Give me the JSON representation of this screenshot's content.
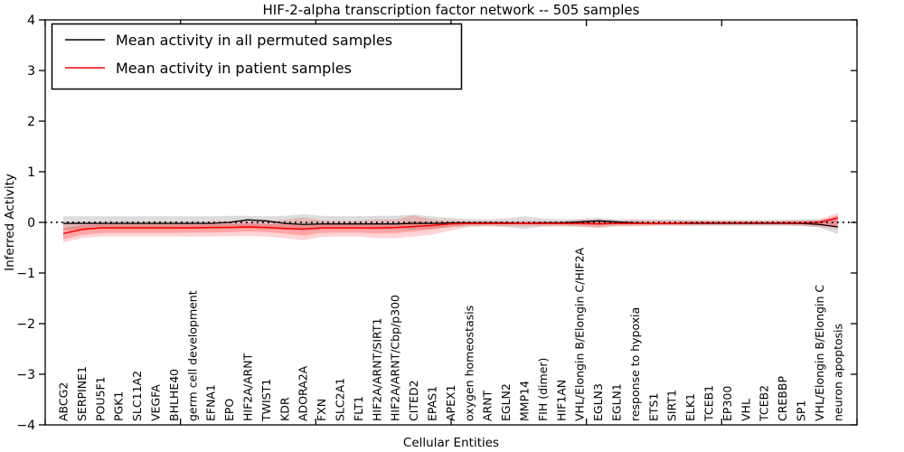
{
  "chart_data": {
    "type": "line",
    "title": "HIF-2-alpha transcription factor network -- 505 samples",
    "xlabel": "Cellular Entities",
    "ylabel": "Inferred Activity",
    "ylim": [
      -4,
      4
    ],
    "yticks": [
      4,
      3,
      2,
      1,
      0,
      -1,
      -2,
      -3,
      -4
    ],
    "ytick_labels": [
      "4",
      "3",
      "2",
      "1",
      "0",
      "−1",
      "−2",
      "−3",
      "−4"
    ],
    "grid": false,
    "legend_position": "upper left",
    "background_color": "#ffffff",
    "frame_color": "#000000",
    "categories": [
      "ABCG2",
      "SERPINE1",
      "POU5F1",
      "PGK1",
      "SLC11A2",
      "VEGFA",
      "BHLHE40",
      "germ cell development",
      "EFNA1",
      "EPO",
      "HIF2A/ARNT",
      "TWIST1",
      "KDR",
      "ADORA2A",
      "FXN",
      "SLC2A1",
      "FLT1",
      "HIF2A/ARNT/SIRT1",
      "HIF2A/ARNT/Cbp/p300",
      "CITED2",
      "EPAS1",
      "APEX1",
      "oxygen homeostasis",
      "ARNT",
      "EGLN2",
      "MMP14",
      "FIH (dimer)",
      "HIF1AN",
      "VHL/Elongin B/Elongin C/HIF2A",
      "EGLN3",
      "EGLN1",
      "response to hypoxia",
      "ETS1",
      "SIRT1",
      "ELK1",
      "TCEB1",
      "EP300",
      "VHL",
      "TCEB2",
      "CREBBP",
      "SP1",
      "VHL/Elongin B/Elongin C",
      "neuron apoptosis"
    ],
    "series": [
      {
        "name": "Mean activity in all permuted samples",
        "color": "#000000",
        "values": [
          -0.02,
          -0.02,
          -0.02,
          -0.02,
          -0.02,
          -0.02,
          -0.02,
          -0.02,
          -0.02,
          0.0,
          0.05,
          0.03,
          -0.02,
          -0.04,
          -0.03,
          -0.03,
          -0.03,
          -0.03,
          -0.03,
          -0.02,
          -0.02,
          -0.01,
          -0.01,
          -0.01,
          -0.01,
          -0.02,
          -0.01,
          -0.01,
          0.01,
          0.03,
          0.01,
          -0.01,
          -0.02,
          -0.02,
          -0.02,
          -0.02,
          -0.02,
          -0.02,
          -0.02,
          -0.02,
          -0.02,
          -0.04,
          -0.09
        ]
      },
      {
        "name": "Mean activity in patient samples",
        "color": "#ff0000",
        "values": [
          -0.22,
          -0.14,
          -0.11,
          -0.11,
          -0.11,
          -0.11,
          -0.11,
          -0.11,
          -0.1,
          -0.1,
          -0.09,
          -0.1,
          -0.12,
          -0.13,
          -0.11,
          -0.11,
          -0.11,
          -0.11,
          -0.1,
          -0.08,
          -0.06,
          -0.03,
          -0.02,
          -0.02,
          -0.02,
          -0.02,
          -0.02,
          -0.02,
          -0.02,
          -0.03,
          -0.02,
          -0.02,
          -0.02,
          -0.02,
          -0.01,
          -0.01,
          -0.01,
          -0.01,
          -0.01,
          -0.01,
          -0.01,
          0.0,
          0.09
        ]
      }
    ],
    "bands": [
      {
        "name": "permuted-samples-range",
        "color": "#808080",
        "opacity": 0.28,
        "upper": [
          0.12,
          0.12,
          0.12,
          0.12,
          0.12,
          0.12,
          0.12,
          0.12,
          0.12,
          0.13,
          0.13,
          0.12,
          0.13,
          0.16,
          0.13,
          0.12,
          0.12,
          0.13,
          0.13,
          0.15,
          0.12,
          0.09,
          0.07,
          0.06,
          0.08,
          0.12,
          0.08,
          0.06,
          0.07,
          0.09,
          0.06,
          0.06,
          0.06,
          0.06,
          0.05,
          0.05,
          0.05,
          0.05,
          0.05,
          0.05,
          0.06,
          0.06,
          0.08
        ],
        "lower": [
          -0.15,
          -0.13,
          -0.13,
          -0.13,
          -0.13,
          -0.13,
          -0.13,
          -0.13,
          -0.13,
          -0.12,
          -0.12,
          -0.13,
          -0.14,
          -0.17,
          -0.13,
          -0.13,
          -0.13,
          -0.14,
          -0.14,
          -0.14,
          -0.12,
          -0.1,
          -0.08,
          -0.07,
          -0.09,
          -0.13,
          -0.08,
          -0.07,
          -0.08,
          -0.1,
          -0.07,
          -0.06,
          -0.06,
          -0.06,
          -0.06,
          -0.06,
          -0.06,
          -0.06,
          -0.06,
          -0.06,
          -0.07,
          -0.1,
          -0.23
        ]
      },
      {
        "name": "patient-samples-range-outer",
        "color": "#ff0000",
        "opacity": 0.17,
        "upper": [
          0.02,
          0.02,
          0.02,
          0.02,
          0.02,
          0.02,
          0.02,
          0.02,
          0.02,
          0.03,
          0.03,
          0.03,
          0.05,
          0.1,
          0.04,
          0.03,
          0.03,
          0.06,
          0.06,
          0.14,
          0.06,
          0.04,
          0.03,
          0.03,
          0.03,
          0.03,
          0.03,
          0.03,
          0.05,
          0.06,
          0.04,
          0.05,
          0.04,
          0.04,
          0.04,
          0.03,
          0.03,
          0.03,
          0.03,
          0.03,
          0.04,
          0.06,
          0.19
        ],
        "lower": [
          -0.4,
          -0.31,
          -0.28,
          -0.28,
          -0.28,
          -0.28,
          -0.28,
          -0.28,
          -0.28,
          -0.27,
          -0.27,
          -0.28,
          -0.31,
          -0.35,
          -0.29,
          -0.28,
          -0.28,
          -0.31,
          -0.31,
          -0.28,
          -0.24,
          -0.16,
          -0.09,
          -0.08,
          -0.08,
          -0.08,
          -0.08,
          -0.08,
          -0.09,
          -0.11,
          -0.08,
          -0.08,
          -0.07,
          -0.07,
          -0.07,
          -0.06,
          -0.06,
          -0.06,
          -0.06,
          -0.06,
          -0.07,
          -0.09,
          -0.13
        ]
      },
      {
        "name": "patient-samples-range-inner",
        "color": "#ff0000",
        "opacity": 0.22,
        "upper": [
          -0.11,
          -0.06,
          -0.04,
          -0.04,
          -0.04,
          -0.04,
          -0.04,
          -0.04,
          -0.04,
          -0.03,
          -0.02,
          -0.03,
          -0.04,
          -0.03,
          -0.04,
          -0.04,
          -0.04,
          -0.03,
          -0.02,
          0.02,
          0.0,
          0.0,
          0.01,
          0.01,
          0.01,
          0.01,
          0.01,
          0.01,
          0.02,
          0.02,
          0.01,
          0.01,
          0.01,
          0.01,
          0.01,
          0.01,
          0.01,
          0.01,
          0.01,
          0.01,
          0.02,
          0.03,
          0.14
        ],
        "lower": [
          -0.33,
          -0.25,
          -0.21,
          -0.21,
          -0.21,
          -0.21,
          -0.21,
          -0.2,
          -0.2,
          -0.19,
          -0.18,
          -0.19,
          -0.22,
          -0.26,
          -0.21,
          -0.2,
          -0.2,
          -0.22,
          -0.21,
          -0.18,
          -0.14,
          -0.08,
          -0.05,
          -0.04,
          -0.04,
          -0.04,
          -0.04,
          -0.04,
          -0.05,
          -0.06,
          -0.04,
          -0.04,
          -0.04,
          -0.04,
          -0.03,
          -0.03,
          -0.03,
          -0.03,
          -0.03,
          -0.03,
          -0.04,
          -0.06,
          -0.08
        ]
      }
    ],
    "zero_line": {
      "y": 0,
      "style": "dotted",
      "color": "#000000"
    }
  },
  "legend": {
    "items": [
      {
        "label": "Mean activity in all permuted samples",
        "color": "#000000"
      },
      {
        "label": "Mean activity in patient samples",
        "color": "#ff0000"
      }
    ]
  }
}
